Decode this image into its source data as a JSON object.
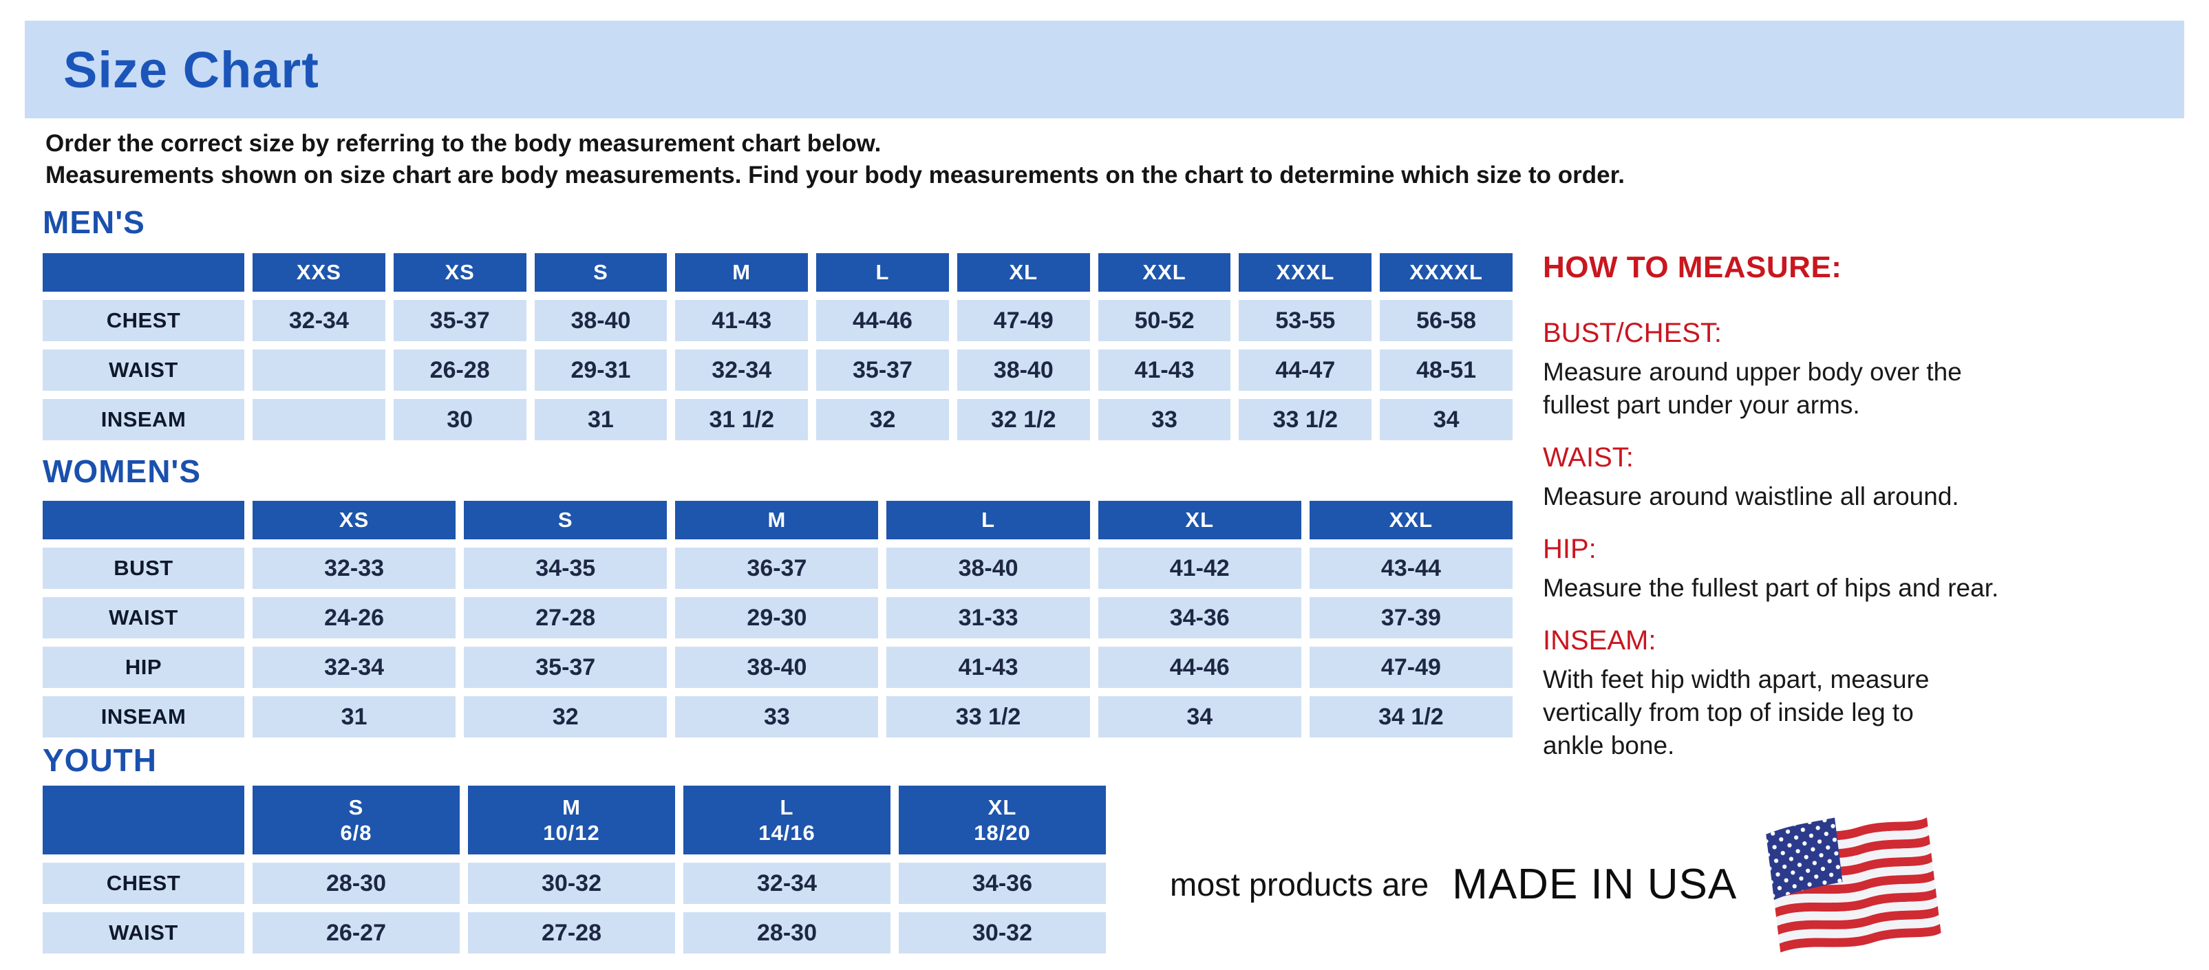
{
  "page": {
    "title": "Size Chart",
    "intro_line1": "Order the correct size by referring to the body measurement chart below.",
    "intro_line2": "Measurements shown on size chart are body measurements.  Find your body measurements on the chart to determine which size to order."
  },
  "tables": {
    "mens": {
      "heading": "MEN'S",
      "columns": [
        "XXS",
        "XS",
        "S",
        "M",
        "L",
        "XL",
        "XXL",
        "XXXL",
        "XXXXL"
      ],
      "rows": [
        {
          "label": "CHEST",
          "values": [
            "32-34",
            "35-37",
            "38-40",
            "41-43",
            "44-46",
            "47-49",
            "50-52",
            "53-55",
            "56-58"
          ]
        },
        {
          "label": "WAIST",
          "values": [
            "",
            "26-28",
            "29-31",
            "32-34",
            "35-37",
            "38-40",
            "41-43",
            "44-47",
            "48-51"
          ]
        },
        {
          "label": "INSEAM",
          "values": [
            "",
            "30",
            "31",
            "31 1/2",
            "32",
            "32 1/2",
            "33",
            "33 1/2",
            "34"
          ]
        }
      ]
    },
    "womens": {
      "heading": "WOMEN'S",
      "columns": [
        "XS",
        "S",
        "M",
        "L",
        "XL",
        "XXL"
      ],
      "rows": [
        {
          "label": "BUST",
          "values": [
            "32-33",
            "34-35",
            "36-37",
            "38-40",
            "41-42",
            "43-44"
          ]
        },
        {
          "label": "WAIST",
          "values": [
            "24-26",
            "27-28",
            "29-30",
            "31-33",
            "34-36",
            "37-39"
          ]
        },
        {
          "label": "HIP",
          "values": [
            "32-34",
            "35-37",
            "38-40",
            "41-43",
            "44-46",
            "47-49"
          ]
        },
        {
          "label": "INSEAM",
          "values": [
            "31",
            "32",
            "33",
            "33 1/2",
            "34",
            "34 1/2"
          ]
        }
      ]
    },
    "youth": {
      "heading": "YOUTH",
      "columns": [
        "S\n6/8",
        "M\n10/12",
        "L\n14/16",
        "XL\n18/20"
      ],
      "rows": [
        {
          "label": "CHEST",
          "values": [
            "28-30",
            "30-32",
            "32-34",
            "34-36"
          ]
        },
        {
          "label": "WAIST",
          "values": [
            "26-27",
            "27-28",
            "28-30",
            "30-32"
          ]
        }
      ]
    }
  },
  "measure": {
    "title": "HOW TO MEASURE:",
    "sections": [
      {
        "heading": "BUST/CHEST:",
        "text": "Measure around upper body over the\nfullest part under your arms."
      },
      {
        "heading": "WAIST:",
        "text": "Measure around waistline all around."
      },
      {
        "heading": "HIP:",
        "text": "Measure the fullest part of hips and rear."
      },
      {
        "heading": "INSEAM:",
        "text": "With feet hip width apart, measure\nvertically from top of inside leg to\nankle bone."
      }
    ]
  },
  "footer": {
    "prefix": "most products are",
    "emphasis": "MADE IN USA",
    "flag_icon": "us-flag-icon"
  },
  "colors": {
    "banner_blue": "#c8dcf5",
    "title_blue": "#1b55ba",
    "heading_blue": "#1a50ae",
    "table_header_blue": "#1e55ad",
    "table_cell_blue": "#cfe0f4",
    "accent_red": "#c9161f",
    "flag_red": "#d02a33",
    "flag_navy": "#2c3a8c"
  }
}
